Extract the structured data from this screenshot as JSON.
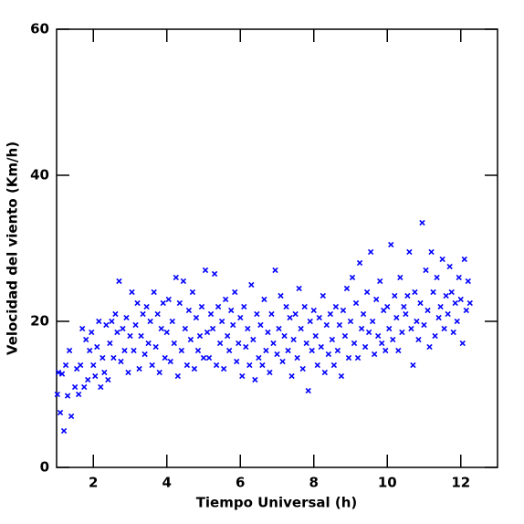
{
  "chart_data": {
    "type": "scatter",
    "xlabel": "Tiempo Universal (h)",
    "ylabel": "Velocidad del viento (Km/h)",
    "xlim": [
      1,
      13
    ],
    "ylim": [
      0,
      60
    ],
    "xticks": [
      2,
      4,
      6,
      8,
      10,
      12
    ],
    "yticks": [
      0,
      20,
      40,
      60
    ],
    "marker": "x",
    "series": [
      {
        "color": "#0000ff",
        "x": [
          1.02,
          1.05,
          1.1,
          1.15,
          1.2,
          1.25,
          1.3,
          1.35,
          1.4,
          1.5,
          1.55,
          1.6,
          1.65,
          1.7,
          1.75,
          1.8,
          1.85,
          1.9,
          1.95,
          2.0,
          2.05,
          2.1,
          2.15,
          2.2,
          2.25,
          2.3,
          2.35,
          2.4,
          2.45,
          2.5,
          2.55,
          2.6,
          2.65,
          2.7,
          2.75,
          2.8,
          2.85,
          2.9,
          2.95,
          3.0,
          3.05,
          3.1,
          3.15,
          3.2,
          3.25,
          3.3,
          3.35,
          3.4,
          3.45,
          3.5,
          3.55,
          3.6,
          3.65,
          3.7,
          3.75,
          3.8,
          3.85,
          3.9,
          3.95,
          4.0,
          4.05,
          4.1,
          4.15,
          4.2,
          4.25,
          4.3,
          4.35,
          4.4,
          4.45,
          4.5,
          4.55,
          4.6,
          4.65,
          4.7,
          4.75,
          4.8,
          4.85,
          4.9,
          4.95,
          5.0,
          5.05,
          5.1,
          5.15,
          5.2,
          5.25,
          5.3,
          5.35,
          5.4,
          5.45,
          5.5,
          5.55,
          5.6,
          5.65,
          5.7,
          5.75,
          5.8,
          5.85,
          5.9,
          5.95,
          6.0,
          6.05,
          6.1,
          6.15,
          6.2,
          6.25,
          6.3,
          6.35,
          6.4,
          6.45,
          6.5,
          6.55,
          6.6,
          6.65,
          6.7,
          6.75,
          6.8,
          6.85,
          6.9,
          6.95,
          7.0,
          7.05,
          7.1,
          7.15,
          7.2,
          7.25,
          7.3,
          7.35,
          7.4,
          7.45,
          7.5,
          7.55,
          7.6,
          7.65,
          7.7,
          7.75,
          7.8,
          7.85,
          7.9,
          7.95,
          8.0,
          8.05,
          8.1,
          8.15,
          8.2,
          8.25,
          8.3,
          8.35,
          8.4,
          8.45,
          8.5,
          8.55,
          8.6,
          8.65,
          8.7,
          8.75,
          8.8,
          8.85,
          8.9,
          8.95,
          9.0,
          9.05,
          9.1,
          9.15,
          9.2,
          9.25,
          9.3,
          9.35,
          9.4,
          9.45,
          9.5,
          9.55,
          9.6,
          9.65,
          9.7,
          9.75,
          9.8,
          9.85,
          9.9,
          9.95,
          10.0,
          10.05,
          10.1,
          10.15,
          10.2,
          10.25,
          10.3,
          10.35,
          10.4,
          10.45,
          10.5,
          10.55,
          10.6,
          10.65,
          10.7,
          10.75,
          10.8,
          10.85,
          10.9,
          10.95,
          11.0,
          11.05,
          11.1,
          11.15,
          11.2,
          11.25,
          11.3,
          11.35,
          11.4,
          11.45,
          11.5,
          11.55,
          11.6,
          11.65,
          11.7,
          11.75,
          11.8,
          11.85,
          11.9,
          11.95,
          12.0,
          12.05,
          12.1,
          12.15,
          12.2,
          12.25
        ],
        "values": [
          10,
          13,
          7.5,
          12.8,
          5,
          14,
          9.8,
          16,
          7,
          11,
          13.5,
          10,
          14,
          19,
          11,
          17.5,
          12,
          16,
          18.5,
          14,
          12.5,
          16.5,
          20,
          11,
          15,
          13,
          19.5,
          12,
          17,
          20,
          15,
          21,
          18.5,
          25.5,
          14.5,
          19,
          16,
          20.5,
          13,
          18,
          24,
          16,
          19.5,
          22.5,
          13.5,
          18,
          21,
          15.5,
          22,
          17,
          20,
          14,
          24,
          16.5,
          21,
          13,
          19,
          22.5,
          15,
          18.5,
          23,
          14.5,
          20,
          17,
          26,
          12.5,
          22.5,
          16,
          25.5,
          19,
          14,
          21.5,
          17.5,
          24,
          13.5,
          20.5,
          16,
          18,
          22,
          15,
          27,
          18.5,
          15,
          21,
          19,
          26.5,
          14,
          22,
          17,
          20,
          13.5,
          23,
          18,
          16,
          21.5,
          19.5,
          24,
          14.5,
          17,
          20.5,
          12.5,
          22,
          16.5,
          19,
          14,
          25,
          17.5,
          12,
          21,
          15,
          19.5,
          14,
          23,
          16,
          18.5,
          13,
          21,
          17,
          27,
          15.5,
          19,
          23.5,
          14.5,
          18,
          22,
          16,
          20.5,
          12.5,
          17.5,
          21,
          15,
          24.5,
          19,
          13.5,
          22,
          17,
          10.5,
          20,
          16,
          21.5,
          18,
          14,
          20.5,
          16.5,
          23.5,
          13,
          19.5,
          15.5,
          21,
          17.5,
          14,
          22,
          16,
          19.5,
          12.5,
          21.5,
          18,
          24.5,
          15,
          20,
          26,
          17,
          22.5,
          15,
          28,
          19,
          21,
          16.5,
          24,
          18.5,
          29.5,
          20,
          15.5,
          23,
          18,
          25.5,
          17,
          21.5,
          16,
          22,
          19,
          30.5,
          17.5,
          23.5,
          20.5,
          16,
          26,
          18.5,
          22,
          21,
          23.5,
          29.5,
          19,
          14,
          24,
          20,
          17.5,
          22.5,
          33.5,
          19.5,
          27,
          21.5,
          16.5,
          29.5,
          24,
          18,
          26,
          20.5,
          22,
          28.5,
          19,
          23.5,
          21,
          27.5,
          24,
          18.5,
          22.5,
          20,
          26,
          23,
          17,
          28.5,
          21.5,
          25.5,
          22.5
        ]
      }
    ]
  }
}
